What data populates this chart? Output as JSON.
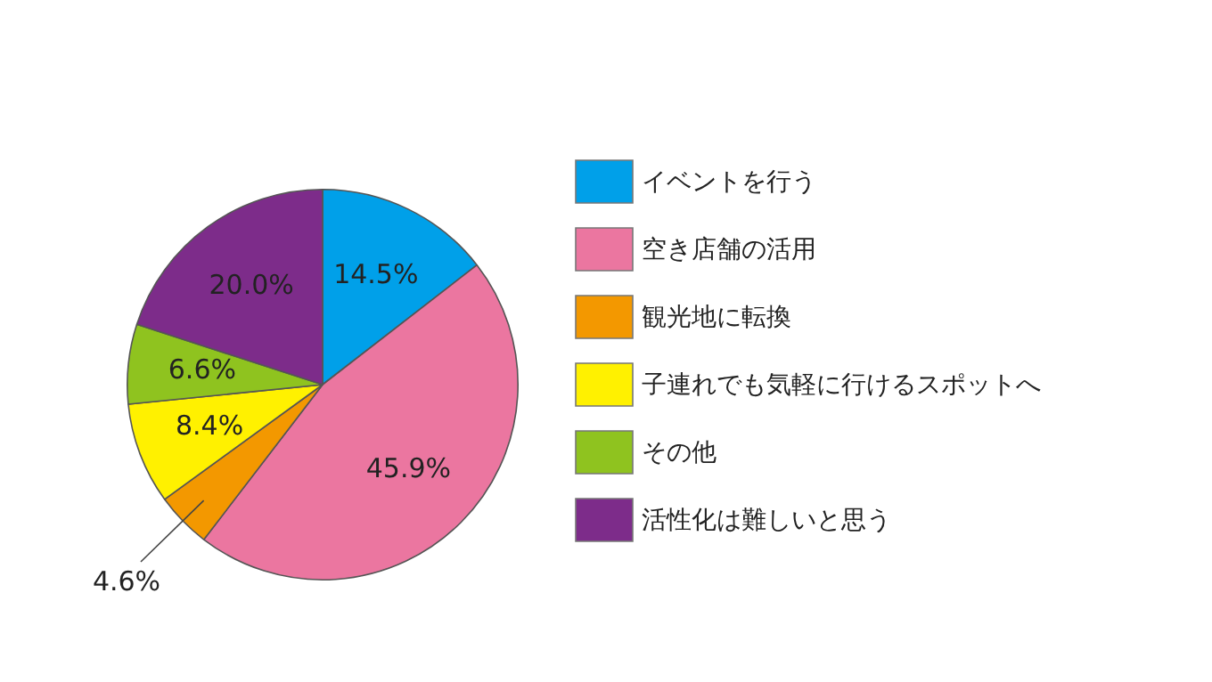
{
  "chart_data": {
    "type": "pie",
    "categories": [
      "イベントを行う",
      "空き店舗の活用",
      "観光地に転換",
      "子連れでも気軽に行けるスポットへ",
      "その他",
      "活性化は難しいと思う"
    ],
    "values": [
      14.5,
      45.9,
      4.6,
      8.4,
      6.6,
      20.0
    ],
    "colors": [
      "#00a0e9",
      "#eb76a0",
      "#f39800",
      "#fff100",
      "#8fc31f",
      "#7d2c8a"
    ],
    "value_labels": [
      "14.5%",
      "45.9%",
      "4.6%",
      "8.4%",
      "6.6%",
      "20.0%"
    ],
    "legend": "right"
  }
}
